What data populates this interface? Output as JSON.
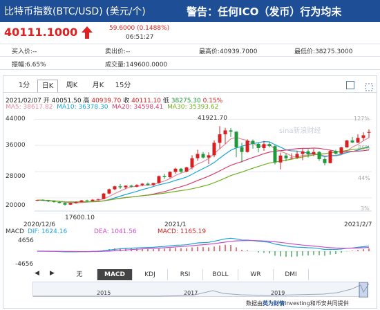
{
  "header": {
    "title": "比特币指数(BTC/USD) (美元/个)",
    "warning": "警告：任何ICO（发币）行为均未"
  },
  "quote": {
    "price": "40111.1000",
    "change": "59.6000 (0.1488%)",
    "time": "06:51:27"
  },
  "stats": {
    "buy": "买入价:--",
    "sell": "卖出价:--",
    "high": "最高价:40939.7000",
    "low": "最低价:38275.3000",
    "amplitude": "振幅:6.65%",
    "turnover": "成交量:149600.0000"
  },
  "tabs": [
    "1分",
    "日K",
    "周K",
    "月K",
    "15分"
  ],
  "active_tab": "日K",
  "info": {
    "date": "2021/02/07",
    "open_label": "开",
    "open": "40051.50",
    "high_label": "高",
    "high": "40939.70",
    "close_label": "收",
    "close": "40111.10",
    "low_label": "低",
    "low": "38275.30",
    "pct": "0.15%",
    "ma5": "MA5: 38617.82",
    "ma10": "MA10: 36378.30",
    "ma20": "MA20: 34598.41",
    "ma30": "MA30: 35393.62"
  },
  "chart_data": [
    {
      "type": "candlestick",
      "y_ticks": [
        "44000",
        "36000",
        "28000",
        "20000"
      ],
      "ylim": [
        17000,
        44500
      ],
      "right_ticks": [
        "127%",
        "86%",
        "44%",
        "3%"
      ],
      "x_labels": [
        "2020/12/6",
        "2021/1",
        "2021/2/7"
      ],
      "annotations": {
        "max": "41921.70",
        "min": "17600.10"
      },
      "series": [
        {
          "name": "MA5",
          "color": "#e58a9c"
        },
        {
          "name": "MA10",
          "color": "#1aa4d8"
        },
        {
          "name": "MA20",
          "color": "#d83d6a"
        },
        {
          "name": "MA30",
          "color": "#70b020"
        }
      ],
      "candles": [
        [
          19200,
          19400,
          19000,
          19300
        ],
        [
          19300,
          19500,
          19100,
          19200
        ],
        [
          19200,
          19300,
          18700,
          18900
        ],
        [
          18900,
          19100,
          18500,
          18700
        ],
        [
          18700,
          18800,
          18300,
          18400
        ],
        [
          18400,
          18600,
          17600,
          17900
        ],
        [
          17900,
          18500,
          17800,
          18400
        ],
        [
          18400,
          18900,
          18200,
          18700
        ],
        [
          18700,
          19300,
          18600,
          19200
        ],
        [
          19200,
          19400,
          18800,
          19000
        ],
        [
          19000,
          19600,
          18900,
          19400
        ],
        [
          19400,
          19700,
          19200,
          19600
        ],
        [
          19600,
          21500,
          19500,
          21300
        ],
        [
          21300,
          22800,
          21100,
          22600
        ],
        [
          22600,
          23700,
          22300,
          23500
        ],
        [
          23500,
          24200,
          22700,
          23200
        ],
        [
          23200,
          23800,
          22600,
          23700
        ],
        [
          23700,
          24000,
          23100,
          23400
        ],
        [
          23400,
          24100,
          23200,
          23900
        ],
        [
          23900,
          24500,
          23500,
          24300
        ],
        [
          24300,
          24700,
          23700,
          23900
        ],
        [
          23900,
          24600,
          23600,
          24500
        ],
        [
          24500,
          26800,
          24300,
          26600
        ],
        [
          26600,
          27300,
          25800,
          26300
        ],
        [
          26300,
          28100,
          26000,
          27900
        ],
        [
          27900,
          29200,
          27400,
          28900
        ],
        [
          28900,
          29100,
          27600,
          28000
        ],
        [
          28000,
          29500,
          27800,
          29300
        ],
        [
          29300,
          33000,
          28700,
          32100
        ],
        [
          32100,
          34700,
          31300,
          33400
        ],
        [
          33400,
          34000,
          32000,
          32300
        ],
        [
          32300,
          33900,
          30300,
          33000
        ],
        [
          33000,
          37600,
          32400,
          36800
        ],
        [
          36800,
          41900,
          35000,
          39400
        ],
        [
          39400,
          41400,
          36500,
          40600
        ],
        [
          40600,
          41300,
          38600,
          40200
        ],
        [
          40200,
          40300,
          32400,
          35400
        ],
        [
          35400,
          36800,
          30800,
          34000
        ],
        [
          34000,
          37900,
          33800,
          37400
        ],
        [
          37400,
          37800,
          35000,
          36500
        ],
        [
          36500,
          36800,
          33900,
          35200
        ],
        [
          35200,
          37400,
          34400,
          36400
        ],
        [
          36400,
          37200,
          35400,
          35800
        ],
        [
          35800,
          36200,
          30200,
          30800
        ],
        [
          30800,
          33800,
          28700,
          32900
        ],
        [
          32900,
          33500,
          31200,
          32100
        ],
        [
          32100,
          33600,
          31800,
          32300
        ],
        [
          32300,
          34400,
          31900,
          33400
        ],
        [
          33400,
          35000,
          31500,
          34200
        ],
        [
          34200,
          34800,
          32300,
          33300
        ],
        [
          33300,
          34900,
          32700,
          34000
        ],
        [
          34000,
          34300,
          31300,
          31800
        ],
        [
          31800,
          32400,
          29900,
          30600
        ],
        [
          30600,
          34600,
          30500,
          34300
        ],
        [
          34300,
          34700,
          33200,
          33500
        ],
        [
          33500,
          35600,
          33400,
          35400
        ],
        [
          35400,
          37700,
          35300,
          37500
        ],
        [
          37500,
          38600,
          36700,
          36900
        ],
        [
          36900,
          39400,
          36700,
          38300
        ],
        [
          38300,
          40000,
          37500,
          39100
        ],
        [
          40051,
          40940,
          38275,
          40111
        ]
      ]
    },
    {
      "type": "line",
      "name": "MACD",
      "y_ticks": [
        "4656",
        "-4656"
      ],
      "ylim": [
        -4656,
        4656
      ],
      "legend": {
        "dif": "DIF: 1624.16",
        "dea": "DEA: 1041.56",
        "macd": "MACD: 1165.19"
      }
    }
  ],
  "indicator_tabs": [
    "无",
    "MACD",
    "KDJ",
    "RSI",
    "BOLL",
    "WR",
    "DMI"
  ],
  "active_indicator": "MACD",
  "nav": {
    "left": "◀",
    "right": "▶"
  },
  "overview_years": [
    "2015",
    "2017",
    "2019"
  ],
  "watermark": "sina新浪财经",
  "source": {
    "prefix": "数据由",
    "brand": "英为财情",
    "mid": "Investing和币安",
    "suffix": "共同提供"
  }
}
